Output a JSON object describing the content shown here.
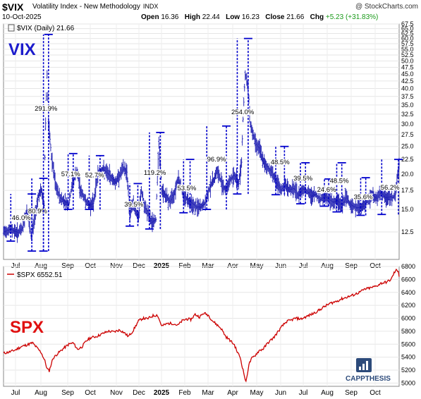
{
  "header": {
    "symbol": "$VIX",
    "description": "Volatility Index - New Methodology",
    "exchange": "INDX",
    "credit": "@ StockCharts.com",
    "date": "10-Oct-2025",
    "open_label": "Open",
    "open": "16.36",
    "high_label": "High",
    "high": "22.44",
    "low_label": "Low",
    "low": "16.23",
    "close_label": "Close",
    "close": "21.66",
    "chg_label": "Chg",
    "chg": "+5.23 (+31.83%)"
  },
  "colors": {
    "vix_bars": "#1a1ab0",
    "annotation": "#0000cc",
    "spx_line": "#cc0000",
    "big_label_blue": "#1c1ccc",
    "big_label_red": "#e01010"
  },
  "chart_data": [
    {
      "type": "bar",
      "name": "VIX",
      "legend": "$VIX (Daily) 21.66",
      "big_label": "VIX",
      "ylim": [
        10,
        67.5
      ],
      "y_scale": "log",
      "y_ticks": [
        "67.5",
        "65.0",
        "62.5",
        "60.0",
        "57.5",
        "55.0",
        "52.5",
        "50.0",
        "47.5",
        "45.0",
        "42.5",
        "40.0",
        "37.5",
        "35.0",
        "32.5",
        "30.0",
        "27.5",
        "25.0",
        "22.5",
        "20.0",
        "17.5",
        "15.0",
        "12.5"
      ],
      "x_ticks": [
        "Jul",
        "Aug",
        "Sep",
        "Oct",
        "Nov",
        "Dec",
        "2025",
        "Feb",
        "Mar",
        "Apr",
        "May",
        "Jun",
        "Jul",
        "Aug",
        "Sep",
        "Oct"
      ],
      "anchors": [
        [
          0,
          12.5
        ],
        [
          10,
          12.8
        ],
        [
          20,
          12.4
        ],
        [
          27,
          13.0
        ],
        [
          32,
          15.0
        ],
        [
          38,
          12.0
        ],
        [
          43,
          14.0
        ],
        [
          48,
          16.8
        ],
        [
          52,
          17.5
        ],
        [
          56,
          15.5
        ],
        [
          60,
          45.0
        ],
        [
          62,
          30.0
        ],
        [
          66,
          23.0
        ],
        [
          72,
          18.0
        ],
        [
          78,
          16.5
        ],
        [
          84,
          16.0
        ],
        [
          90,
          15.6
        ],
        [
          95,
          18.5
        ],
        [
          101,
          20.5
        ],
        [
          106,
          17.5
        ],
        [
          112,
          16.3
        ],
        [
          118,
          15.5
        ],
        [
          124,
          15.8
        ],
        [
          130,
          20.0
        ],
        [
          136,
          20.8
        ],
        [
          142,
          20.3
        ],
        [
          148,
          19.5
        ],
        [
          154,
          18.7
        ],
        [
          160,
          19.8
        ],
        [
          165,
          21.0
        ],
        [
          170,
          20.3
        ],
        [
          174,
          14.3
        ],
        [
          178,
          15.8
        ],
        [
          182,
          14.8
        ],
        [
          186,
          14.0
        ],
        [
          190,
          17.5
        ],
        [
          194,
          15.2
        ],
        [
          198,
          14.8
        ],
        [
          204,
          13.5
        ],
        [
          210,
          13.8
        ],
        [
          214,
          25.5
        ],
        [
          218,
          17.5
        ],
        [
          223,
          16.8
        ],
        [
          229,
          16.0
        ],
        [
          235,
          17.0
        ],
        [
          241,
          19.5
        ],
        [
          247,
          17.0
        ],
        [
          253,
          16.3
        ],
        [
          259,
          15.8
        ],
        [
          265,
          15.3
        ],
        [
          272,
          15.3
        ],
        [
          278,
          15.8
        ],
        [
          284,
          18.0
        ],
        [
          290,
          19.2
        ],
        [
          294,
          20.5
        ],
        [
          300,
          18.8
        ],
        [
          306,
          17.5
        ],
        [
          312,
          19.0
        ],
        [
          318,
          19.8
        ],
        [
          324,
          18.5
        ],
        [
          328,
          22.0
        ],
        [
          333,
          45.0
        ],
        [
          337,
          40.0
        ],
        [
          340,
          30.0
        ],
        [
          344,
          27.5
        ],
        [
          348,
          25.5
        ],
        [
          353,
          24.5
        ],
        [
          358,
          22.0
        ],
        [
          364,
          21.0
        ],
        [
          370,
          20.3
        ],
        [
          376,
          18.7
        ],
        [
          382,
          17.5
        ],
        [
          388,
          18.3
        ],
        [
          394,
          17.6
        ],
        [
          400,
          17.8
        ],
        [
          406,
          16.8
        ],
        [
          412,
          17.7
        ],
        [
          418,
          17.4
        ],
        [
          424,
          16.7
        ],
        [
          430,
          17.0
        ],
        [
          436,
          16.2
        ],
        [
          442,
          16.7
        ],
        [
          448,
          16.3
        ],
        [
          454,
          15.9
        ],
        [
          460,
          16.1
        ],
        [
          466,
          15.5
        ],
        [
          472,
          16.6
        ],
        [
          478,
          15.6
        ],
        [
          484,
          15.3
        ],
        [
          490,
          15.2
        ],
        [
          496,
          15.4
        ],
        [
          502,
          16.3
        ],
        [
          508,
          16.8
        ],
        [
          514,
          16.4
        ],
        [
          520,
          17.2
        ],
        [
          526,
          16.5
        ],
        [
          532,
          16.6
        ],
        [
          536,
          16.5
        ],
        [
          540,
          17.0
        ],
        [
          545,
          21.66
        ]
      ],
      "annotations": [
        {
          "label": "46.0%",
          "x": [
            10,
            39
          ],
          "y": [
            11.6,
            17.0
          ],
          "label_y": 14.0
        },
        {
          "label": "80.9%",
          "x": [
            39,
            55
          ],
          "y": [
            10.7,
            19.3
          ],
          "label_y": 14.8
        },
        {
          "label": "291.9%",
          "x": [
            55,
            62
          ],
          "y": [
            10.7,
            62.0
          ],
          "label_y": 34.0
        },
        {
          "label": "57.1%",
          "x": [
            89,
            96
          ],
          "y": [
            15.0,
            23.6
          ],
          "label_y": 20.0
        },
        {
          "label": "52.7%",
          "x": [
            118,
            133
          ],
          "y": [
            15.0,
            23.2
          ],
          "label_y": 19.8
        },
        {
          "label": "39.5%",
          "x": [
            174,
            185
          ],
          "y": [
            13.1,
            18.5
          ],
          "label_y": 15.6
        },
        {
          "label": "119.2%",
          "x": [
            201,
            216
          ],
          "y": [
            12.8,
            28.0
          ],
          "label_y": 20.2
        },
        {
          "label": "53.5%",
          "x": [
            248,
            257
          ],
          "y": [
            14.6,
            22.5
          ],
          "label_y": 17.8
        },
        {
          "label": "96.9%",
          "x": [
            280,
            307
          ],
          "y": [
            15.0,
            29.5
          ],
          "label_y": 22.5
        },
        {
          "label": "254.0%",
          "x": [
            322,
            337
          ],
          "y": [
            17.0,
            60.0
          ],
          "label_y": 33.0
        },
        {
          "label": "48.5%",
          "x": [
            375,
            387
          ],
          "y": [
            16.9,
            25.0
          ],
          "label_y": 22.0
        },
        {
          "label": "39.5%",
          "x": [
            409,
            416
          ],
          "y": [
            15.7,
            21.9
          ],
          "label_y": 19.3
        },
        {
          "label": "24.6%",
          "x": [
            442,
            448
          ],
          "y": [
            15.4,
            19.2
          ],
          "label_y": 17.6
        },
        {
          "label": "48.5%",
          "x": [
            459,
            466
          ],
          "y": [
            14.7,
            21.9
          ],
          "label_y": 18.9
        },
        {
          "label": "35.6%",
          "x": [
            492,
            499
          ],
          "y": [
            14.3,
            19.4
          ],
          "label_y": 16.6
        },
        {
          "label": "56.2%",
          "x": [
            521,
            544
          ],
          "y": [
            14.4,
            22.5
          ],
          "label_y": 17.9
        }
      ]
    },
    {
      "type": "line",
      "name": "SPX",
      "legend": "$SPX 6552.51",
      "big_label": "SPX",
      "ylim": [
        4950,
        6800
      ],
      "y_ticks": [
        "6800",
        "6600",
        "6400",
        "6200",
        "6000",
        "5800",
        "5600",
        "5400",
        "5200",
        "5000"
      ],
      "x_ticks": [
        "Jul",
        "Aug",
        "Sep",
        "Oct",
        "Nov",
        "Dec",
        "2025",
        "Feb",
        "Mar",
        "Apr",
        "May",
        "Jun",
        "Jul",
        "Aug",
        "Sep",
        "Oct"
      ],
      "anchors": [
        [
          0,
          5460
        ],
        [
          8,
          5480
        ],
        [
          16,
          5510
        ],
        [
          24,
          5560
        ],
        [
          32,
          5590
        ],
        [
          40,
          5620
        ],
        [
          46,
          5545
        ],
        [
          52,
          5470
        ],
        [
          57,
          5340
        ],
        [
          60,
          5220
        ],
        [
          63,
          5190
        ],
        [
          68,
          5380
        ],
        [
          74,
          5450
        ],
        [
          82,
          5530
        ],
        [
          90,
          5600
        ],
        [
          96,
          5620
        ],
        [
          102,
          5520
        ],
        [
          108,
          5560
        ],
        [
          114,
          5650
        ],
        [
          120,
          5700
        ],
        [
          128,
          5720
        ],
        [
          136,
          5760
        ],
        [
          144,
          5800
        ],
        [
          152,
          5790
        ],
        [
          160,
          5820
        ],
        [
          166,
          5780
        ],
        [
          172,
          5720
        ],
        [
          178,
          5800
        ],
        [
          186,
          5960
        ],
        [
          192,
          6000
        ],
        [
          198,
          5990
        ],
        [
          206,
          6040
        ],
        [
          212,
          6050
        ],
        [
          218,
          5880
        ],
        [
          226,
          5920
        ],
        [
          234,
          5920
        ],
        [
          240,
          5890
        ],
        [
          246,
          5960
        ],
        [
          252,
          5990
        ],
        [
          258,
          5980
        ],
        [
          264,
          6060
        ],
        [
          270,
          6020
        ],
        [
          276,
          6080
        ],
        [
          282,
          6050
        ],
        [
          288,
          5960
        ],
        [
          294,
          5900
        ],
        [
          300,
          5840
        ],
        [
          306,
          5720
        ],
        [
          312,
          5660
        ],
        [
          318,
          5590
        ],
        [
          322,
          5480
        ],
        [
          326,
          5400
        ],
        [
          330,
          5200
        ],
        [
          334,
          5010
        ],
        [
          338,
          5290
        ],
        [
          342,
          5380
        ],
        [
          346,
          5420
        ],
        [
          352,
          5500
        ],
        [
          358,
          5530
        ],
        [
          364,
          5620
        ],
        [
          372,
          5700
        ],
        [
          378,
          5790
        ],
        [
          384,
          5880
        ],
        [
          390,
          5950
        ],
        [
          396,
          5970
        ],
        [
          402,
          6000
        ],
        [
          410,
          5990
        ],
        [
          418,
          6030
        ],
        [
          426,
          6070
        ],
        [
          434,
          6120
        ],
        [
          442,
          6180
        ],
        [
          450,
          6230
        ],
        [
          458,
          6260
        ],
        [
          466,
          6300
        ],
        [
          474,
          6330
        ],
        [
          482,
          6360
        ],
        [
          490,
          6400
        ],
        [
          498,
          6450
        ],
        [
          506,
          6470
        ],
        [
          514,
          6500
        ],
        [
          520,
          6540
        ],
        [
          528,
          6560
        ],
        [
          534,
          6600
        ],
        [
          538,
          6700
        ],
        [
          541,
          6740
        ],
        [
          544,
          6730
        ],
        [
          546,
          6552.51
        ]
      ]
    }
  ],
  "watermark": {
    "name": "CAPPTHESIS"
  }
}
